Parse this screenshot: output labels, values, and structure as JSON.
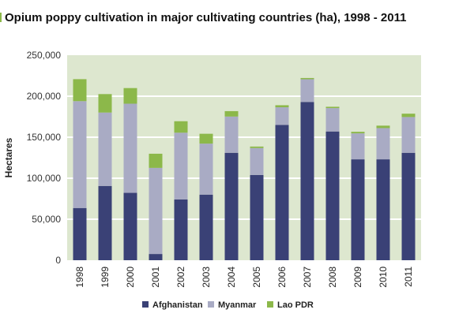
{
  "chart_data": {
    "type": "bar",
    "stacked": true,
    "title": "Opium poppy cultivation in major cultivating countries (ha), 1998 - 2011",
    "xlabel": "",
    "ylabel": "Hectares",
    "ylim": [
      0,
      250000
    ],
    "yticks": [
      0,
      50000,
      100000,
      150000,
      200000,
      250000
    ],
    "ytick_labels": [
      "0",
      "50,000",
      "100,000",
      "150,000",
      "200,000",
      "250,000"
    ],
    "grid": true,
    "legend": "bottom",
    "background": "#dde7cf",
    "categories": [
      "1998",
      "1999",
      "2000",
      "2001",
      "2002",
      "2003",
      "2004",
      "2005",
      "2006",
      "2007",
      "2008",
      "2009",
      "2010",
      "2011"
    ],
    "series": [
      {
        "name": "Afghanistan",
        "color": "#3a4176",
        "values": [
          63674,
          90583,
          82171,
          7606,
          74100,
          80000,
          131000,
          104000,
          165000,
          193000,
          157000,
          123000,
          123000,
          131000
        ]
      },
      {
        "name": "Myanmar",
        "color": "#a9abc4",
        "values": [
          130300,
          89500,
          108700,
          105000,
          81400,
          62200,
          44200,
          32800,
          21500,
          27700,
          28500,
          31700,
          38100,
          43600
        ]
      },
      {
        "name": "Lao PDR",
        "color": "#8cb84a",
        "values": [
          26800,
          22500,
          19052,
          17255,
          14000,
          12000,
          6600,
          1800,
          2500,
          1500,
          1600,
          1900,
          3000,
          4100
        ]
      }
    ]
  }
}
